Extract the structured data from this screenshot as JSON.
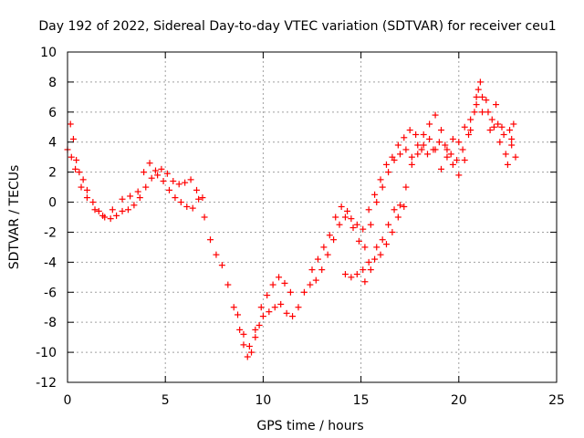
{
  "chart_data": {
    "type": "scatter",
    "title": "Day 192 of 2022, Sidereal Day-to-day VTEC variation (SDTVAR) for receiver ceu1",
    "xlabel": "GPS time / hours",
    "ylabel": "SDTVAR / TECUs",
    "xlim": [
      0,
      25
    ],
    "ylim": [
      -12,
      10
    ],
    "x_ticks": [
      "0",
      "5",
      "10",
      "15",
      "20",
      "25"
    ],
    "y_ticks": [
      "10",
      "8",
      "6",
      "4",
      "2",
      "0",
      "-2",
      "-4",
      "-6",
      "-8",
      "-10",
      "-12"
    ],
    "grid": true,
    "marker": "+",
    "series": [
      {
        "name": "SDTVAR",
        "color": "#ff0000",
        "points": [
          [
            0.0,
            3.5
          ],
          [
            0.15,
            5.2
          ],
          [
            0.3,
            4.2
          ],
          [
            0.45,
            2.8
          ],
          [
            0.6,
            2.0
          ],
          [
            0.8,
            1.5
          ],
          [
            1.0,
            0.8
          ],
          [
            1.3,
            0.0
          ],
          [
            1.6,
            -0.6
          ],
          [
            1.9,
            -1.0
          ],
          [
            2.2,
            -1.1
          ],
          [
            2.5,
            -0.9
          ],
          [
            2.8,
            -0.6
          ],
          [
            3.1,
            -0.5
          ],
          [
            3.4,
            -0.2
          ],
          [
            3.7,
            0.3
          ],
          [
            4.0,
            1.0
          ],
          [
            4.3,
            1.6
          ],
          [
            4.6,
            1.8
          ],
          [
            4.9,
            1.4
          ],
          [
            5.2,
            0.8
          ],
          [
            5.5,
            0.3
          ],
          [
            5.8,
            0.0
          ],
          [
            6.1,
            -0.3
          ],
          [
            6.4,
            -0.4
          ],
          [
            6.7,
            0.2
          ],
          [
            7.0,
            -1.0
          ],
          [
            7.3,
            -2.5
          ],
          [
            7.6,
            -3.5
          ],
          [
            7.9,
            -4.2
          ],
          [
            8.2,
            -5.5
          ],
          [
            8.5,
            -7.0
          ],
          [
            8.8,
            -8.5
          ],
          [
            9.0,
            -9.5
          ],
          [
            9.2,
            -10.3
          ],
          [
            9.4,
            -10.0
          ],
          [
            9.6,
            -9.0
          ],
          [
            9.8,
            -8.2
          ],
          [
            10.0,
            -7.6
          ],
          [
            10.3,
            -7.3
          ],
          [
            10.6,
            -7.0
          ],
          [
            10.9,
            -6.8
          ],
          [
            11.2,
            -7.4
          ],
          [
            11.5,
            -7.6
          ],
          [
            11.8,
            -7.0
          ],
          [
            12.1,
            -6.0
          ],
          [
            12.4,
            -5.5
          ],
          [
            12.7,
            -5.2
          ],
          [
            13.0,
            -4.5
          ],
          [
            13.3,
            -3.5
          ],
          [
            13.6,
            -2.5
          ],
          [
            13.9,
            -1.5
          ],
          [
            14.2,
            -1.0
          ],
          [
            14.5,
            -1.1
          ],
          [
            14.8,
            -1.5
          ],
          [
            15.1,
            -1.8
          ],
          [
            15.4,
            -0.5
          ],
          [
            15.7,
            0.5
          ],
          [
            16.0,
            1.5
          ],
          [
            16.3,
            2.5
          ],
          [
            16.6,
            3.0
          ],
          [
            16.9,
            3.8
          ],
          [
            17.2,
            4.3
          ],
          [
            17.5,
            4.8
          ],
          [
            17.8,
            4.5
          ],
          [
            18.1,
            3.5
          ],
          [
            18.4,
            3.2
          ],
          [
            18.7,
            3.5
          ],
          [
            19.0,
            4.0
          ],
          [
            19.3,
            3.8
          ],
          [
            19.6,
            3.2
          ],
          [
            19.9,
            2.8
          ],
          [
            20.2,
            3.5
          ],
          [
            20.5,
            4.5
          ],
          [
            20.8,
            6.0
          ],
          [
            21.0,
            7.5
          ],
          [
            21.2,
            7.0
          ],
          [
            21.5,
            6.0
          ],
          [
            21.8,
            5.0
          ],
          [
            22.1,
            4.0
          ],
          [
            22.4,
            3.2
          ],
          [
            22.7,
            3.8
          ],
          [
            22.9,
            3.0
          ],
          [
            0.2,
            3.0
          ],
          [
            0.4,
            2.2
          ],
          [
            0.7,
            1.0
          ],
          [
            1.0,
            0.3
          ],
          [
            1.4,
            -0.5
          ],
          [
            1.8,
            -0.9
          ],
          [
            2.3,
            -0.5
          ],
          [
            2.8,
            0.2
          ],
          [
            3.2,
            0.4
          ],
          [
            3.6,
            0.7
          ],
          [
            3.9,
            2.0
          ],
          [
            4.2,
            2.6
          ],
          [
            4.5,
            2.1
          ],
          [
            4.8,
            2.2
          ],
          [
            5.1,
            1.9
          ],
          [
            5.4,
            1.4
          ],
          [
            5.7,
            1.2
          ],
          [
            6.0,
            1.3
          ],
          [
            6.3,
            1.5
          ],
          [
            6.6,
            0.8
          ],
          [
            6.9,
            0.3
          ],
          [
            8.7,
            -7.5
          ],
          [
            9.0,
            -8.8
          ],
          [
            9.3,
            -9.6
          ],
          [
            9.6,
            -8.5
          ],
          [
            9.9,
            -7.0
          ],
          [
            10.2,
            -6.2
          ],
          [
            10.5,
            -5.5
          ],
          [
            10.8,
            -5.0
          ],
          [
            11.1,
            -5.4
          ],
          [
            11.4,
            -6.0
          ],
          [
            12.5,
            -4.5
          ],
          [
            12.8,
            -3.8
          ],
          [
            13.1,
            -3.0
          ],
          [
            13.4,
            -2.2
          ],
          [
            13.7,
            -1.0
          ],
          [
            14.0,
            -0.3
          ],
          [
            14.3,
            -0.6
          ],
          [
            14.6,
            -1.7
          ],
          [
            14.9,
            -2.6
          ],
          [
            15.2,
            -3.0
          ],
          [
            15.5,
            -1.5
          ],
          [
            15.8,
            0.0
          ],
          [
            16.1,
            1.0
          ],
          [
            16.4,
            2.0
          ],
          [
            16.7,
            2.8
          ],
          [
            17.0,
            3.2
          ],
          [
            17.3,
            3.5
          ],
          [
            17.6,
            3.0
          ],
          [
            17.9,
            3.8
          ],
          [
            18.2,
            4.5
          ],
          [
            18.5,
            5.2
          ],
          [
            18.8,
            5.8
          ],
          [
            19.1,
            4.8
          ],
          [
            19.4,
            3.5
          ],
          [
            19.7,
            2.5
          ],
          [
            20.0,
            1.8
          ],
          [
            20.3,
            2.8
          ],
          [
            20.6,
            4.8
          ],
          [
            20.9,
            6.5
          ],
          [
            21.1,
            8.0
          ],
          [
            21.4,
            6.8
          ],
          [
            21.7,
            5.5
          ],
          [
            22.0,
            5.2
          ],
          [
            22.3,
            4.5
          ],
          [
            22.6,
            4.8
          ],
          [
            22.8,
            5.2
          ],
          [
            14.2,
            -4.8
          ],
          [
            14.5,
            -5.0
          ],
          [
            14.8,
            -4.8
          ],
          [
            15.1,
            -4.5
          ],
          [
            15.4,
            -4.0
          ],
          [
            15.7,
            -3.8
          ],
          [
            16.0,
            -3.5
          ],
          [
            16.3,
            -2.8
          ],
          [
            16.6,
            -2.0
          ],
          [
            16.9,
            -1.0
          ],
          [
            17.2,
            -0.3
          ],
          [
            15.2,
            -5.3
          ],
          [
            15.5,
            -4.5
          ],
          [
            15.8,
            -3.0
          ],
          [
            16.1,
            -2.5
          ],
          [
            16.4,
            -1.5
          ],
          [
            16.7,
            -0.5
          ],
          [
            17.0,
            -0.2
          ],
          [
            17.3,
            1.0
          ],
          [
            17.6,
            2.5
          ],
          [
            17.9,
            3.2
          ],
          [
            18.2,
            3.8
          ],
          [
            18.5,
            4.2
          ],
          [
            18.8,
            3.5
          ],
          [
            19.1,
            2.2
          ],
          [
            19.4,
            3.0
          ],
          [
            19.7,
            4.2
          ],
          [
            20.0,
            4.0
          ],
          [
            20.3,
            5.0
          ],
          [
            20.6,
            5.5
          ],
          [
            20.9,
            7.0
          ],
          [
            21.2,
            6.0
          ],
          [
            21.6,
            4.8
          ],
          [
            21.9,
            6.5
          ],
          [
            22.2,
            5.0
          ],
          [
            22.5,
            2.5
          ],
          [
            22.7,
            4.2
          ]
        ]
      }
    ]
  }
}
